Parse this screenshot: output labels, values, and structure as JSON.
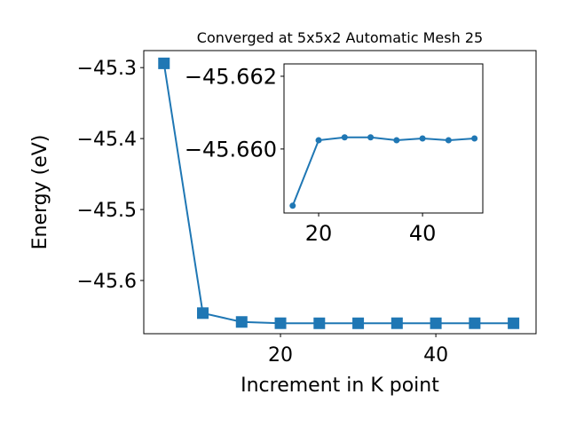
{
  "chart_data": [
    {
      "type": "line",
      "title": "Converged at 5x5x2 Automatic Mesh 25",
      "x_label": "Increment in K point",
      "y_label": "Energy (eV)",
      "x": [
        5,
        10,
        15,
        20,
        25,
        30,
        35,
        40,
        45,
        50
      ],
      "series": [
        {
          "color": "#1f77b4",
          "marker": "square",
          "values": [
            -45.294,
            -45.646,
            -45.65844,
            -45.66024,
            -45.66032,
            -45.66032,
            -45.66024,
            -45.66029,
            -45.66024,
            -45.66029
          ]
        }
      ],
      "xlim": [
        2.4,
        52.9
      ],
      "ylim": [
        -45.675,
        -45.276
      ],
      "xticks": [
        20,
        40
      ],
      "yticks": [
        {
          "value": -45.3,
          "label": "−45.3"
        },
        {
          "value": -45.4,
          "label": "−45.4"
        },
        {
          "value": -45.5,
          "label": "−45.5"
        },
        {
          "value": -45.6,
          "label": "−45.6"
        }
      ]
    },
    {
      "type": "line",
      "x": [
        15,
        20,
        25,
        30,
        35,
        40,
        45,
        50
      ],
      "series": [
        {
          "color": "#1f77b4",
          "marker": "circle",
          "values": [
            -45.65844,
            -45.66024,
            -45.66032,
            -45.66032,
            -45.66024,
            -45.66029,
            -45.66024,
            -45.66029
          ]
        }
      ],
      "xlim": [
        13.33,
        51.6
      ],
      "ylim": [
        -45.65824,
        -45.66234
      ],
      "xticks": [
        20,
        40
      ],
      "yticks": [
        {
          "value": -45.662,
          "label": "−45.662"
        },
        {
          "value": -45.66,
          "label": "−45.660"
        }
      ]
    }
  ]
}
